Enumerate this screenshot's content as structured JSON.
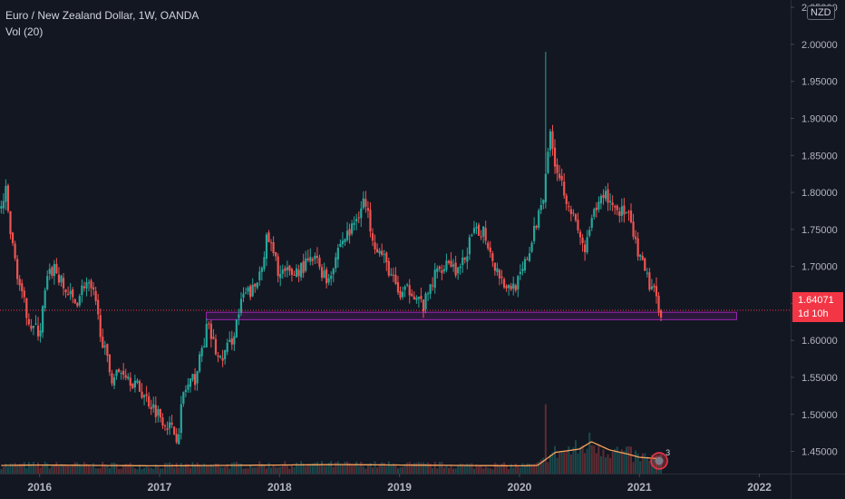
{
  "legend": {
    "title": "Euro / New Zealand Dollar, 1W, OANDA",
    "indicator": "Vol (20)"
  },
  "currency_badge": "NZD",
  "last_price": {
    "value": "1.64071",
    "countdown": "1d 10h",
    "color": "#f23645"
  },
  "colors": {
    "background": "#131722",
    "up": "#26a69a",
    "down": "#ef5350",
    "volume_ma": "#f7a35c",
    "zone": "#9c27b0"
  },
  "indicator_badge": "3",
  "chart_data": {
    "type": "candlestick",
    "title": "Euro / New Zealand Dollar, 1W, OANDA",
    "interval": "1W",
    "y_axis": {
      "ticks": [
        "2.05000",
        "2.00000",
        "1.95000",
        "1.90000",
        "1.85000",
        "1.80000",
        "1.75000",
        "1.70000",
        "1.65000",
        "1.60000",
        "1.55000",
        "1.50000",
        "1.45000"
      ],
      "range": [
        1.42,
        2.06
      ],
      "position": "right"
    },
    "x_axis": {
      "ticks": [
        "2016",
        "2017",
        "2018",
        "2019",
        "2020",
        "2021",
        "2022"
      ],
      "range": [
        2015.67,
        2022.26
      ]
    },
    "grid": false,
    "current_price": 1.64071,
    "support_zone": {
      "from_x": 2017.39,
      "to_x": 2021.81,
      "low": 1.628,
      "high": 1.638
    },
    "price_path": [
      [
        2015.68,
        1.78
      ],
      [
        2015.72,
        1.8
      ],
      [
        2015.76,
        1.74
      ],
      [
        2015.85,
        1.66
      ],
      [
        2015.93,
        1.62
      ],
      [
        2016.0,
        1.61
      ],
      [
        2016.06,
        1.68
      ],
      [
        2016.12,
        1.7
      ],
      [
        2016.2,
        1.67
      ],
      [
        2016.3,
        1.65
      ],
      [
        2016.38,
        1.68
      ],
      [
        2016.45,
        1.66
      ],
      [
        2016.55,
        1.58
      ],
      [
        2016.6,
        1.55
      ],
      [
        2016.7,
        1.56
      ],
      [
        2016.8,
        1.54
      ],
      [
        2016.9,
        1.52
      ],
      [
        2017.0,
        1.5
      ],
      [
        2017.1,
        1.48
      ],
      [
        2017.15,
        1.47
      ],
      [
        2017.2,
        1.53
      ],
      [
        2017.3,
        1.55
      ],
      [
        2017.4,
        1.62
      ],
      [
        2017.5,
        1.57
      ],
      [
        2017.6,
        1.6
      ],
      [
        2017.7,
        1.66
      ],
      [
        2017.8,
        1.67
      ],
      [
        2017.9,
        1.74
      ],
      [
        2018.0,
        1.69
      ],
      [
        2018.1,
        1.69
      ],
      [
        2018.2,
        1.7
      ],
      [
        2018.3,
        1.71
      ],
      [
        2018.4,
        1.68
      ],
      [
        2018.5,
        1.73
      ],
      [
        2018.6,
        1.75
      ],
      [
        2018.7,
        1.79
      ],
      [
        2018.8,
        1.73
      ],
      [
        2018.9,
        1.7
      ],
      [
        2019.0,
        1.66
      ],
      [
        2019.1,
        1.67
      ],
      [
        2019.2,
        1.645
      ],
      [
        2019.3,
        1.69
      ],
      [
        2019.4,
        1.71
      ],
      [
        2019.5,
        1.69
      ],
      [
        2019.6,
        1.74
      ],
      [
        2019.7,
        1.75
      ],
      [
        2019.8,
        1.7
      ],
      [
        2019.9,
        1.67
      ],
      [
        2020.0,
        1.68
      ],
      [
        2020.1,
        1.73
      ],
      [
        2020.2,
        1.8
      ],
      [
        2020.25,
        1.88
      ],
      [
        2020.3,
        1.84
      ],
      [
        2020.4,
        1.79
      ],
      [
        2020.5,
        1.74
      ],
      [
        2020.55,
        1.72
      ],
      [
        2020.6,
        1.76
      ],
      [
        2020.7,
        1.8
      ],
      [
        2020.8,
        1.78
      ],
      [
        2020.9,
        1.77
      ],
      [
        2021.0,
        1.71
      ],
      [
        2021.05,
        1.69
      ],
      [
        2021.1,
        1.67
      ],
      [
        2021.18,
        1.64071
      ]
    ],
    "price_extremes": {
      "high": [
        2020.22,
        1.99
      ],
      "low": [
        2017.17,
        1.46
      ]
    },
    "volume": {
      "name": "Vol (20)",
      "ma_path": [
        [
          2015.68,
          1.0
        ],
        [
          2016.0,
          1.05
        ],
        [
          2016.5,
          1.0
        ],
        [
          2017.0,
          0.95
        ],
        [
          2017.5,
          1.0
        ],
        [
          2018.0,
          1.05
        ],
        [
          2018.5,
          1.1
        ],
        [
          2019.0,
          1.05
        ],
        [
          2019.5,
          1.0
        ],
        [
          2020.0,
          0.95
        ],
        [
          2020.15,
          1.0
        ],
        [
          2020.3,
          2.6
        ],
        [
          2020.5,
          3.0
        ],
        [
          2020.6,
          3.9
        ],
        [
          2020.75,
          2.9
        ],
        [
          2020.9,
          2.4
        ],
        [
          2021.0,
          2.0
        ],
        [
          2021.18,
          1.8
        ]
      ],
      "spike": [
        2020.22,
        8.5
      ]
    }
  }
}
